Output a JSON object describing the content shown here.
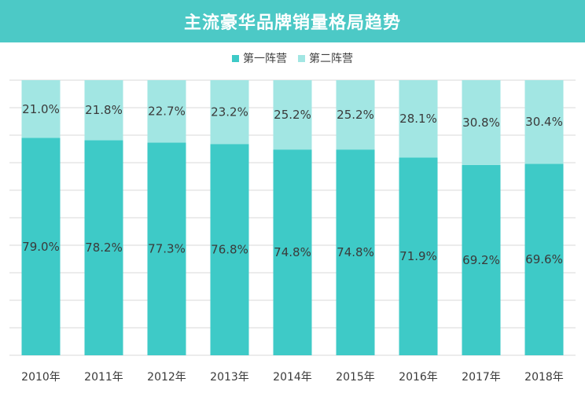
{
  "title": "主流豪华品牌销量格局趋势",
  "colors": {
    "title_bg": "#4cc9c6",
    "series_first": "#3ecac7",
    "series_second": "#a2e6e3",
    "grid": "#d9d9d9"
  },
  "legend": [
    {
      "name": "第一阵营",
      "color": "#3ecac7"
    },
    {
      "name": "第二阵营",
      "color": "#a2e6e3"
    }
  ],
  "chart_data": {
    "type": "bar",
    "stacked": true,
    "percent": true,
    "categories": [
      "2010年",
      "2011年",
      "2012年",
      "2013年",
      "2014年",
      "2015年",
      "2016年",
      "2017年",
      "2018年"
    ],
    "series": [
      {
        "name": "第一阵营",
        "values": [
          79.0,
          78.2,
          77.3,
          76.8,
          74.8,
          74.8,
          71.9,
          69.2,
          69.6
        ],
        "labels": [
          "79.0%",
          "78.2%",
          "77.3%",
          "76.8%",
          "74.8%",
          "74.8%",
          "71.9%",
          "69.2%",
          "69.6%"
        ]
      },
      {
        "name": "第二阵营",
        "values": [
          21.0,
          21.8,
          22.7,
          23.2,
          25.2,
          25.2,
          28.1,
          30.8,
          30.4
        ],
        "labels": [
          "21.0%",
          "21.8%",
          "22.7%",
          "23.2%",
          "25.2%",
          "25.2%",
          "28.1%",
          "30.8%",
          "30.4%"
        ]
      }
    ],
    "ylim": [
      0,
      100
    ],
    "grid": true,
    "legend_position": "top-center"
  }
}
